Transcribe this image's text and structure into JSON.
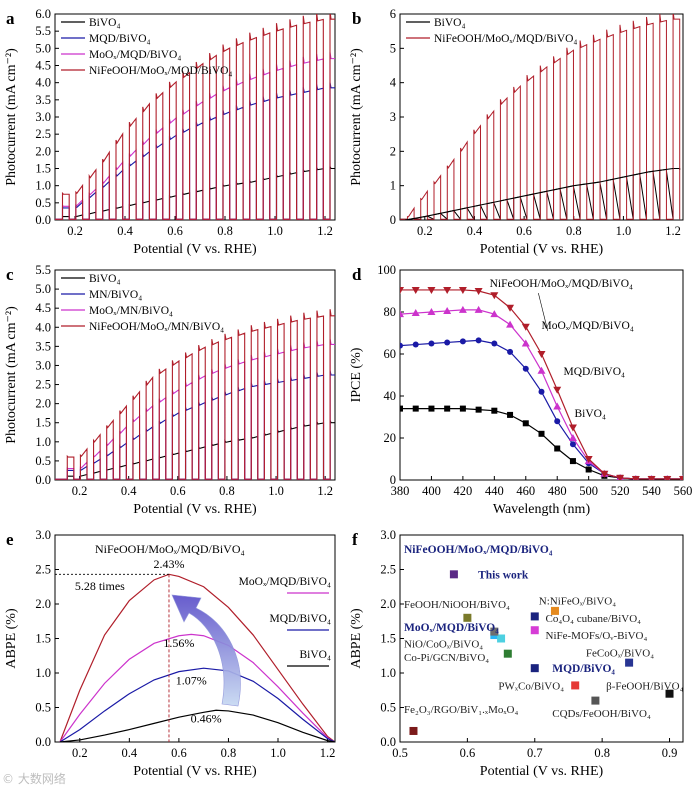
{
  "watermark": "© 大数网络",
  "chart_data": [
    {
      "panel": "a",
      "type": "line",
      "title": "",
      "xlabel": "Potential (V vs. RHE)",
      "ylabel": "Photocurrent (mA cm⁻²)",
      "xlim": [
        0.12,
        1.24
      ],
      "ylim": [
        0,
        6
      ],
      "xticks": [
        "0.2",
        "0.4",
        "0.6",
        "0.8",
        "1.0",
        "1.2"
      ],
      "yticks": [
        "0.0",
        "0.5",
        "1.0",
        "1.5",
        "2.0",
        "2.5",
        "3.0",
        "3.5",
        "4.0",
        "4.5",
        "5.0",
        "5.5",
        "6.0"
      ],
      "legend_position": "top-left",
      "chopped": true,
      "chop_start": 0.15,
      "chop_step": 0.0535,
      "series": [
        {
          "name": "BiVO₄",
          "color": "#000000",
          "x": [
            0.2,
            0.3,
            0.4,
            0.5,
            0.6,
            0.7,
            0.8,
            0.9,
            1.0,
            1.1,
            1.2
          ],
          "y": [
            0.1,
            0.25,
            0.4,
            0.55,
            0.7,
            0.85,
            1.0,
            1.1,
            1.25,
            1.4,
            1.5
          ]
        },
        {
          "name": "MQD/BiVO₄",
          "color": "#1a1aa6",
          "x": [
            0.2,
            0.3,
            0.4,
            0.5,
            0.6,
            0.7,
            0.8,
            0.9,
            1.0,
            1.1,
            1.2
          ],
          "y": [
            0.35,
            0.9,
            1.5,
            2.0,
            2.45,
            2.8,
            3.1,
            3.35,
            3.55,
            3.7,
            3.85
          ]
        },
        {
          "name": "MoOₓ/MQD/BiVO₄",
          "color": "#cc33cc",
          "x": [
            0.2,
            0.3,
            0.4,
            0.5,
            0.6,
            0.7,
            0.8,
            0.9,
            1.0,
            1.1,
            1.2
          ],
          "y": [
            0.4,
            1.0,
            1.75,
            2.4,
            2.95,
            3.4,
            3.8,
            4.1,
            4.35,
            4.55,
            4.7
          ]
        },
        {
          "name": "NiFeOOH/MoOₓ/MQD/BiVO₄",
          "color": "#b01e2a",
          "x": [
            0.2,
            0.3,
            0.4,
            0.5,
            0.6,
            0.7,
            0.8,
            0.9,
            1.0,
            1.1,
            1.2
          ],
          "y": [
            0.75,
            1.6,
            2.6,
            3.4,
            4.0,
            4.5,
            4.95,
            5.25,
            5.5,
            5.7,
            5.85
          ]
        }
      ]
    },
    {
      "panel": "b",
      "type": "line",
      "title": "",
      "xlabel": "Potential (V vs. RHE)",
      "ylabel": "Photocurrent (mA cm⁻²)",
      "xlim": [
        0.1,
        1.24
      ],
      "ylim": [
        0,
        6
      ],
      "xticks": [
        "0.2",
        "0.4",
        "0.6",
        "0.8",
        "1.0",
        "1.2"
      ],
      "yticks": [
        "0",
        "1",
        "2",
        "3",
        "4",
        "5",
        "6"
      ],
      "legend_position": "top-left",
      "chopped": true,
      "chop_start": 0.13,
      "chop_step": 0.0535,
      "series": [
        {
          "name": "BiVO₄",
          "color": "#000000",
          "x": [
            0.12,
            0.2,
            0.3,
            0.4,
            0.5,
            0.6,
            0.7,
            0.8,
            0.9,
            1.0,
            1.1,
            1.2
          ],
          "y": [
            0.0,
            0.1,
            0.25,
            0.4,
            0.55,
            0.7,
            0.85,
            1.0,
            1.1,
            1.25,
            1.4,
            1.5
          ]
        },
        {
          "name": "NiFeOOH/MoOₓ/MQD/BiVO₄",
          "color": "#b01e2a",
          "x": [
            0.12,
            0.2,
            0.3,
            0.4,
            0.5,
            0.6,
            0.7,
            0.8,
            0.9,
            1.0,
            1.1,
            1.2
          ],
          "y": [
            0.0,
            0.75,
            1.6,
            2.55,
            3.35,
            4.0,
            4.5,
            4.95,
            5.25,
            5.5,
            5.7,
            5.85
          ]
        }
      ]
    },
    {
      "panel": "c",
      "type": "line",
      "title": "",
      "xlabel": "Potential (V vs. RHE)",
      "ylabel": "Photocurrent (mA cm⁻²)",
      "xlim": [
        0.1,
        1.24
      ],
      "ylim": [
        0,
        5.5
      ],
      "xticks": [
        "0.2",
        "0.4",
        "0.6",
        "0.8",
        "1.0",
        "1.2"
      ],
      "yticks": [
        "0.0",
        "0.5",
        "1.0",
        "1.5",
        "2.0",
        "2.5",
        "3.0",
        "3.5",
        "4.0",
        "4.5",
        "5.0",
        "5.5"
      ],
      "legend_position": "top-left",
      "chopped": true,
      "chop_start": 0.15,
      "chop_step": 0.0535,
      "series": [
        {
          "name": "BiVO₄",
          "color": "#000000",
          "x": [
            0.2,
            0.3,
            0.4,
            0.5,
            0.6,
            0.7,
            0.8,
            0.9,
            1.0,
            1.1,
            1.2
          ],
          "y": [
            0.1,
            0.25,
            0.4,
            0.55,
            0.7,
            0.85,
            1.0,
            1.1,
            1.25,
            1.4,
            1.5
          ]
        },
        {
          "name": "MN/BiVO₄",
          "color": "#1a1aa6",
          "x": [
            0.2,
            0.3,
            0.4,
            0.5,
            0.6,
            0.7,
            0.8,
            0.9,
            1.0,
            1.1,
            1.2
          ],
          "y": [
            0.25,
            0.6,
            1.0,
            1.4,
            1.75,
            2.0,
            2.25,
            2.45,
            2.55,
            2.65,
            2.75
          ]
        },
        {
          "name": "MoOₓ/MN/BiVO₄",
          "color": "#cc33cc",
          "x": [
            0.2,
            0.3,
            0.4,
            0.5,
            0.6,
            0.7,
            0.8,
            0.9,
            1.0,
            1.1,
            1.2
          ],
          "y": [
            0.3,
            0.85,
            1.45,
            1.95,
            2.35,
            2.7,
            2.95,
            3.15,
            3.3,
            3.45,
            3.55
          ]
        },
        {
          "name": "NiFeOOH/MoOₓ/MN/BiVO₄",
          "color": "#b01e2a",
          "x": [
            0.2,
            0.3,
            0.4,
            0.5,
            0.6,
            0.7,
            0.8,
            0.9,
            1.0,
            1.1,
            1.2
          ],
          "y": [
            0.6,
            1.3,
            2.0,
            2.7,
            3.1,
            3.45,
            3.7,
            3.9,
            4.05,
            4.2,
            4.3
          ]
        }
      ]
    },
    {
      "panel": "d",
      "type": "line",
      "title": "",
      "xlabel": "Wavelength (nm)",
      "ylabel": "IPCE (%)",
      "xlim": [
        380,
        560
      ],
      "ylim": [
        0,
        100
      ],
      "xticks": [
        "380",
        "400",
        "420",
        "440",
        "460",
        "480",
        "500",
        "520",
        "540",
        "560"
      ],
      "yticks": [
        "0",
        "20",
        "40",
        "60",
        "80",
        "100"
      ],
      "labels": [
        {
          "text": "NiFeOOH/MoOₓ/MQD/BiVO₄",
          "x": 437,
          "y": 92
        },
        {
          "text": "MoOₓ/MQD/BiVO₄",
          "x": 470,
          "y": 72
        },
        {
          "text": "MQD/BiVO₄",
          "x": 484,
          "y": 50
        },
        {
          "text": "BiVO₄",
          "x": 491,
          "y": 30
        }
      ],
      "series": [
        {
          "name": "BiVO₄",
          "color": "#000000",
          "marker": "square",
          "x": [
            380,
            390,
            400,
            410,
            420,
            430,
            440,
            450,
            460,
            470,
            480,
            490,
            500,
            510,
            520,
            530,
            540,
            550,
            560
          ],
          "y": [
            34,
            34,
            34,
            34,
            34,
            33.5,
            33,
            31,
            27,
            22,
            15,
            9,
            5,
            2,
            1,
            0.5,
            0.5,
            0.5,
            0.5
          ]
        },
        {
          "name": "MQD/BiVO₄",
          "color": "#1a1aa6",
          "marker": "circle",
          "x": [
            380,
            390,
            400,
            410,
            420,
            430,
            440,
            450,
            460,
            470,
            480,
            490,
            500,
            510,
            520,
            530,
            540,
            550,
            560
          ],
          "y": [
            64,
            64.5,
            65,
            65.5,
            66,
            66.5,
            65,
            61,
            53,
            42,
            28,
            17,
            8,
            3,
            1,
            0.5,
            0.5,
            0.5,
            0.5
          ]
        },
        {
          "name": "MoOₓ/MQD/BiVO₄",
          "color": "#cc33cc",
          "marker": "triangle-up",
          "x": [
            380,
            390,
            400,
            410,
            420,
            430,
            440,
            450,
            460,
            470,
            480,
            490,
            500,
            510,
            520,
            530,
            540,
            550,
            560
          ],
          "y": [
            79,
            79.5,
            80,
            80.5,
            81,
            81,
            79,
            74,
            65,
            52,
            35,
            20,
            9,
            3,
            1,
            0.5,
            0.5,
            0.5,
            0.5
          ]
        },
        {
          "name": "NiFeOOH/MoOₓ/MQD/BiVO₄",
          "color": "#b01e2a",
          "marker": "triangle-down",
          "x": [
            380,
            390,
            400,
            410,
            420,
            430,
            440,
            450,
            460,
            470,
            480,
            490,
            500,
            510,
            520,
            530,
            540,
            550,
            560
          ],
          "y": [
            90.5,
            90.5,
            90.5,
            90.5,
            90.5,
            90,
            88,
            82,
            73,
            60,
            43,
            25,
            10,
            3,
            1,
            0.5,
            0.5,
            0.5,
            0.5
          ]
        }
      ]
    },
    {
      "panel": "e",
      "type": "line",
      "title": "",
      "xlabel": "Potential (V vs. RHE)",
      "ylabel": "ABPE (%)",
      "xlim": [
        0.1,
        1.23
      ],
      "ylim": [
        0,
        3.0
      ],
      "xticks": [
        "0.2",
        "0.4",
        "0.6",
        "0.8",
        "1.0",
        "1.2"
      ],
      "yticks": [
        "0.0",
        "0.5",
        "1.0",
        "1.5",
        "2.0",
        "2.5",
        "3.0"
      ],
      "top_label": "NiFeOOH/MoOₓ/MQD/BiVO₄",
      "annotations": [
        {
          "text": "2.43%",
          "x": 0.56,
          "y": 2.52
        },
        {
          "text": "5.28 times",
          "x": 0.18,
          "y": 2.2
        },
        {
          "text": "1.56%",
          "x": 0.6,
          "y": 1.38
        },
        {
          "text": "1.07%",
          "x": 0.65,
          "y": 0.83
        },
        {
          "text": "0.46%",
          "x": 0.71,
          "y": 0.28
        }
      ],
      "peak": {
        "x": 0.56,
        "y": 2.43
      },
      "series": [
        {
          "name": "NiFeOOH/MoOₓ/MQD/BiVO₄",
          "color": "#b01e2a",
          "x": [
            0.12,
            0.2,
            0.3,
            0.4,
            0.5,
            0.56,
            0.6,
            0.7,
            0.8,
            0.9,
            1.0,
            1.1,
            1.2,
            1.23
          ],
          "y": [
            0,
            0.75,
            1.55,
            2.05,
            2.35,
            2.43,
            2.4,
            2.25,
            1.95,
            1.55,
            1.05,
            0.55,
            0.08,
            0
          ]
        },
        {
          "name": "MoOₓ/MQD/BiVO₄",
          "color": "#cc33cc",
          "x": [
            0.12,
            0.2,
            0.3,
            0.4,
            0.5,
            0.6,
            0.65,
            0.7,
            0.8,
            0.9,
            1.0,
            1.1,
            1.2,
            1.23
          ],
          "y": [
            0,
            0.4,
            0.85,
            1.2,
            1.43,
            1.54,
            1.56,
            1.54,
            1.4,
            1.15,
            0.8,
            0.42,
            0.06,
            0
          ]
        },
        {
          "name": "MQD/BiVO₄",
          "color": "#1a1aa6",
          "x": [
            0.12,
            0.2,
            0.3,
            0.4,
            0.5,
            0.6,
            0.7,
            0.8,
            0.9,
            1.0,
            1.1,
            1.2,
            1.23
          ],
          "y": [
            0,
            0.18,
            0.45,
            0.7,
            0.9,
            1.02,
            1.07,
            1.03,
            0.88,
            0.63,
            0.33,
            0.05,
            0
          ]
        },
        {
          "name": "BiVO₄",
          "color": "#000000",
          "x": [
            0.12,
            0.2,
            0.3,
            0.4,
            0.5,
            0.6,
            0.7,
            0.75,
            0.8,
            0.9,
            1.0,
            1.1,
            1.2,
            1.23
          ],
          "y": [
            0,
            0.03,
            0.1,
            0.18,
            0.27,
            0.36,
            0.43,
            0.46,
            0.45,
            0.39,
            0.28,
            0.14,
            0.02,
            0
          ]
        }
      ]
    },
    {
      "panel": "f",
      "type": "scatter",
      "title": "",
      "xlabel": "Potential (V vs. RHE)",
      "ylabel": "ABPE (%)",
      "xlim": [
        0.5,
        0.92
      ],
      "ylim": [
        0,
        3.0
      ],
      "xticks": [
        "0.5",
        "0.6",
        "0.7",
        "0.8",
        "0.9"
      ],
      "yticks": [
        "0.0",
        "0.5",
        "1.0",
        "1.5",
        "2.0",
        "2.5",
        "3.0"
      ],
      "top_label": "NiFeOOH/MoOₓ/MQD/BiVO₄",
      "points": [
        {
          "label": "This work",
          "x": 0.58,
          "y": 2.43,
          "color": "#5b2a86",
          "bold": true,
          "label_color": "#1a237e",
          "lx": 0.61,
          "ly": 2.43
        },
        {
          "label": "N:NiFeOₓ/BiVO₄",
          "x": 0.73,
          "y": 1.9,
          "color": "#e58a1f",
          "bold": false,
          "label_color": "#222222",
          "lx": 0.7,
          "ly": 2.05
        },
        {
          "label": "FeOOH/NiOOH/BiVO₄",
          "x": 0.6,
          "y": 1.8,
          "color": "#7a7a2a",
          "bold": false,
          "label_color": "#222222",
          "lx": 0.5,
          "ly": 2.0
        },
        {
          "label": "Co₄O₄ cubane/BiVO₄",
          "x": 0.7,
          "y": 1.82,
          "color": "#1a237e",
          "bold": false,
          "label_color": "#222222",
          "lx": 0.71,
          "ly": 1.8
        },
        {
          "label": "MoOₓ/MQD/BiVO₄",
          "x": 0.64,
          "y": 1.55,
          "color": "#29b6f6",
          "bold": true,
          "label_color": "#1a237e",
          "lx": 0.5,
          "ly": 1.67
        },
        {
          "label": "",
          "x": 0.65,
          "y": 1.5,
          "color": "#4dd0e1",
          "bold": false,
          "label_color": "#222222",
          "lx": 0,
          "ly": 0
        },
        {
          "label": "NiFe-MOFs/Oᵥ-BiVO₄",
          "x": 0.7,
          "y": 1.62,
          "color": "#d63cd6",
          "bold": false,
          "label_color": "#222222",
          "lx": 0.71,
          "ly": 1.55
        },
        {
          "label": "NiO/CoOₓ/BiVO₄",
          "x": 0.64,
          "y": 1.6,
          "color": "#6e6e6e",
          "bold": false,
          "label_color": "#222222",
          "lx": 0.5,
          "ly": 1.43
        },
        {
          "label": "Co-Pi/GCN/BiVO₄",
          "x": 0.66,
          "y": 1.28,
          "color": "#2e7d32",
          "bold": false,
          "label_color": "#222222",
          "lx": 0.5,
          "ly": 1.23
        },
        {
          "label": "FeCoOₓ/BiVO₄",
          "x": 0.84,
          "y": 1.15,
          "color": "#283593",
          "bold": false,
          "label_color": "#222222",
          "lx": 0.77,
          "ly": 1.3
        },
        {
          "label": "MQD/BiVO₄",
          "x": 0.7,
          "y": 1.07,
          "color": "#1a237e",
          "bold": true,
          "label_color": "#1a237e",
          "lx": 0.72,
          "ly": 1.07
        },
        {
          "label": "PWₓCo/BiVO₄",
          "x": 0.76,
          "y": 0.82,
          "color": "#e53935",
          "bold": false,
          "label_color": "#222222",
          "lx": 0.64,
          "ly": 0.82
        },
        {
          "label": "β-FeOOH/BiVO₄",
          "x": 0.9,
          "y": 0.7,
          "color": "#111111",
          "bold": false,
          "label_color": "#222222",
          "lx": 0.8,
          "ly": 0.82
        },
        {
          "label": "CQDs/FeOOH/BiVO₄",
          "x": 0.79,
          "y": 0.6,
          "color": "#555555",
          "bold": false,
          "label_color": "#222222",
          "lx": 0.72,
          "ly": 0.42
        },
        {
          "label": "Fe₂O₃/RGO/BiV₁.ₓMoₓO₄",
          "x": 0.52,
          "y": 0.16,
          "color": "#7b1a1a",
          "bold": false,
          "label_color": "#222222",
          "lx": 0.5,
          "ly": 0.48
        }
      ]
    }
  ]
}
